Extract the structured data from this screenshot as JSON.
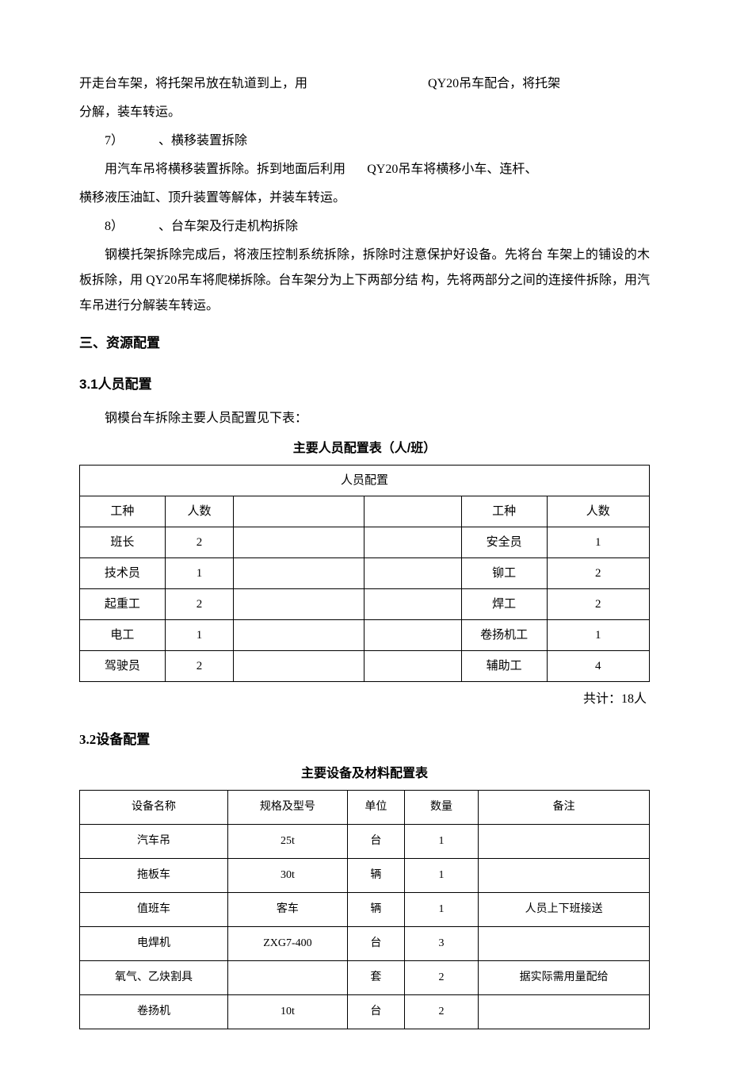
{
  "p1": {
    "a": "开走台车架，将托架吊放在轨道到上，用",
    "b": "QY20吊车配合，将托架",
    "c": "分解，装车转运。"
  },
  "item7": {
    "num": "7）",
    "title": "、横移装置拆除"
  },
  "p7": {
    "a": "用汽车吊将横移装置拆除。拆到地面后利用",
    "b": "QY20吊车将横移小车、连杆、",
    "c": "横移液压油缸、顶升装置等解体，并装车转运。"
  },
  "item8": {
    "num": "8）",
    "title": "、台车架及行走机构拆除"
  },
  "p8": {
    "a": "钢模托架拆除完成后，将液压控制系统拆除，拆除时注意保护好设备。先将台  车架上的铺设的木板拆除，用 QY20吊车将爬梯拆除。台车架分为上下两部分结  构，先将两部分之间的连接件拆除，用汽车吊进行分解装车转运。"
  },
  "sec3": "三、资源配置",
  "sec31": "3.1人员配置",
  "p31": "钢模台车拆除主要人员配置见下表：",
  "t1": {
    "title": "主要人员配置表（人/班）",
    "header_span": "人员配置",
    "cols": {
      "role": "工种",
      "count": "人数"
    },
    "rows": [
      {
        "l_role": "班长",
        "l_count": "2",
        "r_role": "安全员",
        "r_count": "1"
      },
      {
        "l_role": "技术员",
        "l_count": "1",
        "r_role": "铆工",
        "r_count": "2"
      },
      {
        "l_role": "起重工",
        "l_count": "2",
        "r_role": "焊工",
        "r_count": "2"
      },
      {
        "l_role": "电工",
        "l_count": "1",
        "r_role": "卷扬机工",
        "r_count": "1"
      },
      {
        "l_role": "驾驶员",
        "l_count": "2",
        "r_role": "辅助工",
        "r_count": "4"
      }
    ],
    "total": "共计：18人",
    "col_widths": [
      "15%",
      "12%",
      "23%",
      "17%",
      "15%",
      "18%"
    ]
  },
  "sec32": "3.2设备配置",
  "t2": {
    "title": "主要设备及材料配置表",
    "cols": {
      "name": "设备名称",
      "spec": "规格及型号",
      "unit": "单位",
      "qty": "数量",
      "note": "备注"
    },
    "rows": [
      {
        "name": "汽车吊",
        "spec": "25t",
        "unit": "台",
        "qty": "1",
        "note": ""
      },
      {
        "name": "拖板车",
        "spec": "30t",
        "unit": "辆",
        "qty": "1",
        "note": ""
      },
      {
        "name": "值班车",
        "spec": "客车",
        "unit": "辆",
        "qty": "1",
        "note": "人员上下班接送"
      },
      {
        "name": "电焊机",
        "spec": "ZXG7-400",
        "unit": "台",
        "qty": "3",
        "note": ""
      },
      {
        "name": "氧气、乙炔割具",
        "spec": "",
        "unit": "套",
        "qty": "2",
        "note": "据实际需用量配给"
      },
      {
        "name": "卷扬机",
        "spec": "10t",
        "unit": "台",
        "qty": "2",
        "note": ""
      }
    ],
    "col_widths": [
      "26%",
      "21%",
      "10%",
      "13%",
      "30%"
    ]
  }
}
